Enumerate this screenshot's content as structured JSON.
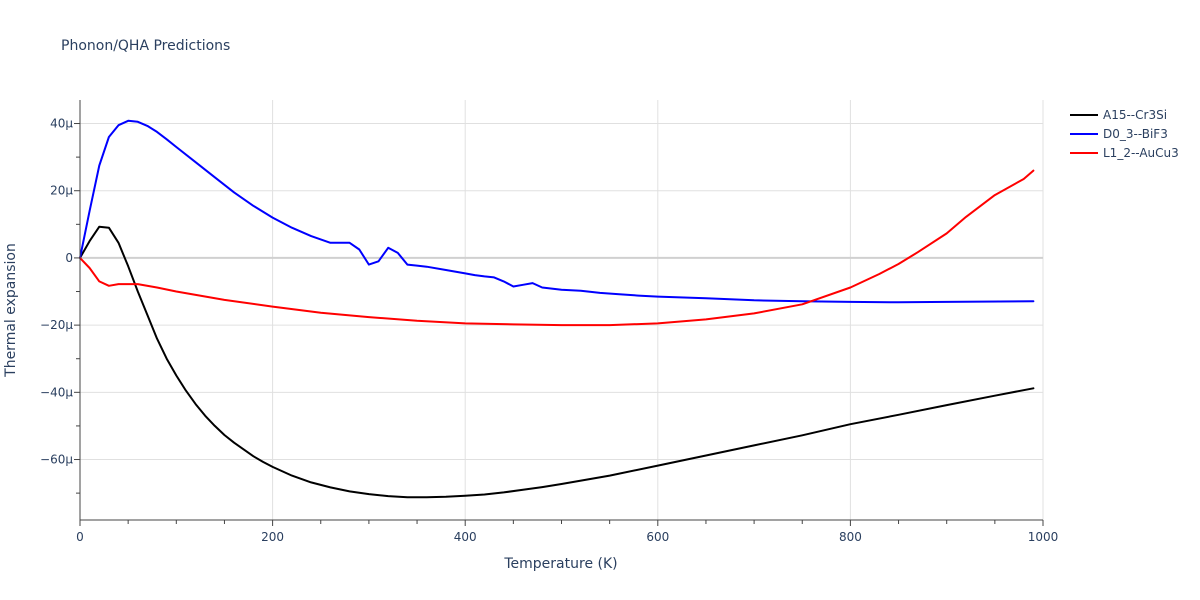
{
  "chart_data": {
    "type": "line",
    "title": "Phonon/QHA Predictions",
    "xlabel": "Temperature (K)",
    "ylabel": "Thermal expansion",
    "xlim": [
      0,
      1000
    ],
    "ylim": [
      -78,
      47
    ],
    "x_ticks": [
      {
        "value": 0,
        "label": "0"
      },
      {
        "value": 200,
        "label": "200"
      },
      {
        "value": 400,
        "label": "400"
      },
      {
        "value": 600,
        "label": "600"
      },
      {
        "value": 800,
        "label": "800"
      },
      {
        "value": 1000,
        "label": "1000"
      }
    ],
    "y_ticks": [
      {
        "value": 40,
        "label": "40µ"
      },
      {
        "value": 20,
        "label": "20µ"
      },
      {
        "value": 0,
        "label": "0"
      },
      {
        "value": -20,
        "label": "−20µ"
      },
      {
        "value": -40,
        "label": "−40µ"
      },
      {
        "value": -60,
        "label": "−60µ"
      }
    ],
    "y_unit_note": "values in units of 1e-6 (µ)",
    "legend_position": "top-right",
    "series": [
      {
        "name": "A15--Cr3Si",
        "color": "#000000",
        "x": [
          0,
          10,
          20,
          30,
          40,
          50,
          60,
          70,
          80,
          90,
          100,
          110,
          120,
          130,
          140,
          150,
          160,
          170,
          180,
          190,
          200,
          220,
          240,
          260,
          280,
          300,
          320,
          340,
          360,
          380,
          400,
          420,
          440,
          460,
          480,
          500,
          550,
          600,
          650,
          700,
          750,
          800,
          850,
          900,
          950,
          990
        ],
        "y": [
          0,
          5,
          9.3,
          9,
          4.5,
          -2.5,
          -10,
          -17,
          -24,
          -30,
          -35,
          -39.5,
          -43.5,
          -47,
          -50,
          -52.7,
          -55,
          -57,
          -59,
          -60.7,
          -62.2,
          -64.8,
          -66.8,
          -68.3,
          -69.5,
          -70.3,
          -70.9,
          -71.2,
          -71.2,
          -71.1,
          -70.8,
          -70.4,
          -69.8,
          -69.0,
          -68.2,
          -67.3,
          -64.8,
          -61.8,
          -58.8,
          -55.8,
          -52.8,
          -49.5,
          -46.7,
          -43.8,
          -41,
          -38.8
        ]
      },
      {
        "name": "D0_3--BiF3",
        "color": "#0000ff",
        "x": [
          0,
          10,
          20,
          30,
          40,
          50,
          60,
          70,
          80,
          90,
          100,
          120,
          140,
          160,
          180,
          200,
          220,
          240,
          260,
          270,
          280,
          290,
          300,
          310,
          320,
          330,
          340,
          350,
          360,
          380,
          400,
          410,
          420,
          430,
          440,
          450,
          460,
          470,
          480,
          500,
          520,
          540,
          560,
          580,
          600,
          650,
          700,
          750,
          800,
          850,
          900,
          990
        ],
        "y": [
          0,
          14,
          27.5,
          36,
          39.5,
          40.8,
          40.5,
          39.3,
          37.5,
          35.3,
          33,
          28.5,
          24,
          19.5,
          15.5,
          12,
          9,
          6.5,
          4.5,
          4.5,
          4.5,
          2.5,
          -2,
          -1,
          3,
          1.5,
          -2,
          -2.3,
          -2.6,
          -3.6,
          -4.6,
          -5.1,
          -5.5,
          -5.8,
          -7,
          -8.5,
          -8,
          -7.5,
          -8.8,
          -9.5,
          -9.8,
          -10.4,
          -10.8,
          -11.2,
          -11.5,
          -12,
          -12.6,
          -12.9,
          -13.1,
          -13.2,
          -13.1,
          -12.9
        ]
      },
      {
        "name": "L1_2--AuCu3",
        "color": "#ff0000",
        "x": [
          0,
          10,
          20,
          30,
          40,
          50,
          60,
          80,
          100,
          150,
          200,
          250,
          300,
          350,
          400,
          450,
          500,
          550,
          600,
          650,
          700,
          750,
          800,
          830,
          850,
          870,
          900,
          920,
          950,
          980,
          990
        ],
        "y": [
          0,
          -3,
          -7,
          -8.3,
          -7.8,
          -7.8,
          -7.8,
          -8.8,
          -10,
          -12.5,
          -14.5,
          -16.3,
          -17.6,
          -18.7,
          -19.5,
          -19.8,
          -20,
          -20,
          -19.5,
          -18.3,
          -16.5,
          -13.8,
          -8.8,
          -4.8,
          -1.8,
          1.7,
          7.3,
          12.2,
          18.7,
          23.5,
          26
        ]
      }
    ]
  }
}
